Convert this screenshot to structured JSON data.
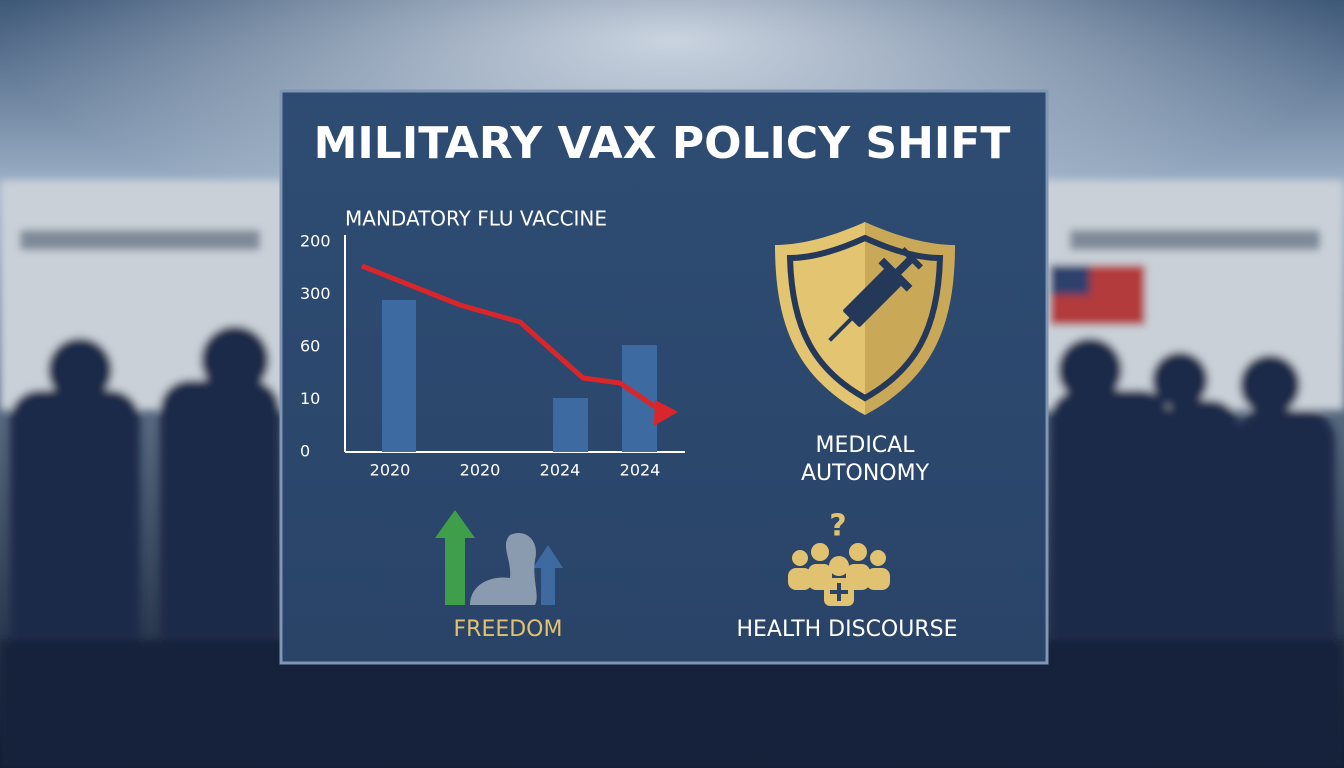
{
  "header": {
    "title": "MILITARY VAX POLICY SHIFT"
  },
  "chart": {
    "title": "MANDATORY FLU VACCINE",
    "y_labels": [
      "200",
      "300",
      "60",
      "10",
      "0"
    ],
    "x_labels": [
      "2020",
      "2020",
      "2024",
      "2024"
    ]
  },
  "panels": [
    {
      "label_lines": [
        "MEDICAL",
        "AUTONOMY"
      ]
    },
    {
      "label": "FREEDOM"
    },
    {
      "label": "HEALTH DISCOURSE"
    }
  ]
}
